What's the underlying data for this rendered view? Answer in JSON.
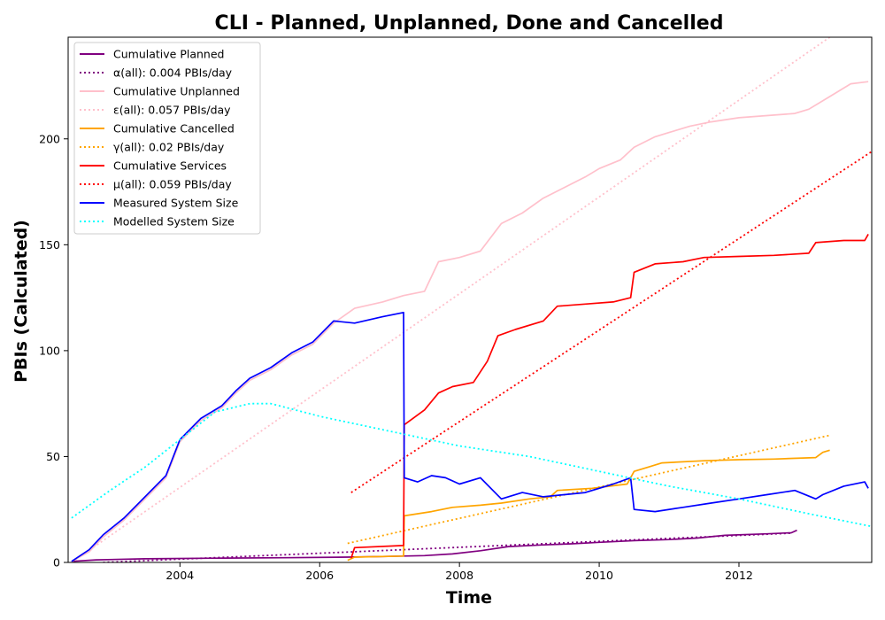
{
  "chart_data": {
    "type": "line",
    "title": "CLI - Planned, Unplanned, Done  and Cancelled",
    "xlabel": "Time",
    "ylabel": "PBIs (Calculated)",
    "xlim": [
      2002.4,
      2013.9
    ],
    "ylim": [
      0,
      248
    ],
    "x_ticks": [
      2004,
      2006,
      2008,
      2010,
      2012
    ],
    "x_tick_labels": [
      "2004",
      "2006",
      "2008",
      "2010",
      "2012"
    ],
    "y_ticks": [
      0,
      50,
      100,
      150,
      200
    ],
    "y_tick_labels": [
      "0",
      "50",
      "100",
      "150",
      "200"
    ],
    "grid": false,
    "legend_position": "top-left",
    "series": [
      {
        "name": "Cumulative Planned",
        "style": "solid",
        "color": "#800080",
        "x": [
          2002.45,
          2002.8,
          2003.5,
          2004.5,
          2005.5,
          2006.4,
          2006.9,
          2007.5,
          2007.9,
          2008.3,
          2008.7,
          2009.2,
          2009.6,
          2010.0,
          2010.5,
          2011.0,
          2011.4,
          2011.8,
          2012.4,
          2012.75,
          2012.83
        ],
        "values": [
          0.5,
          1.2,
          1.7,
          2.0,
          2.2,
          2.5,
          2.8,
          3.2,
          4.0,
          5.5,
          7.5,
          8.3,
          8.8,
          9.5,
          10.3,
          10.8,
          11.5,
          12.8,
          13.5,
          14.0,
          15.2
        ]
      },
      {
        "name": "α(all): 0.004 PBIs/day",
        "style": "dotted",
        "color": "#800080",
        "x": [
          2002.9,
          2012.75
        ],
        "values": [
          0.0,
          13.8
        ]
      },
      {
        "name": "Cumulative Unplanned",
        "style": "solid",
        "color": "#ffc0cb",
        "x": [
          2002.45,
          2002.7,
          2002.9,
          2003.2,
          2003.5,
          2003.8,
          2004.0,
          2004.3,
          2004.6,
          2004.8,
          2005.0,
          2005.3,
          2005.6,
          2005.9,
          2006.2,
          2006.5,
          2006.9,
          2007.2,
          2007.5,
          2007.7,
          2008.0,
          2008.3,
          2008.6,
          2008.9,
          2009.2,
          2009.5,
          2009.8,
          2010.0,
          2010.3,
          2010.5,
          2010.8,
          2011.0,
          2011.3,
          2011.6,
          2012.0,
          2012.4,
          2012.8,
          2013.0,
          2013.3,
          2013.6,
          2013.85
        ],
        "values": [
          0.5,
          5,
          12,
          20,
          30,
          40,
          57,
          67,
          73,
          80,
          86,
          91,
          98,
          103,
          113,
          120,
          123,
          126,
          128,
          142,
          144,
          147,
          160,
          165,
          172,
          177,
          182,
          186,
          190,
          196,
          201,
          203,
          206,
          208,
          210,
          211,
          212,
          214,
          220,
          226,
          227
        ]
      },
      {
        "name": "ε(all): 0.057 PBIs/day",
        "style": "dotted",
        "color": "#ffc0cb",
        "x": [
          2002.45,
          2013.3
        ],
        "values": [
          0,
          248
        ]
      },
      {
        "name": "Cumulative Cancelled",
        "style": "solid",
        "color": "#ffa500",
        "x": [
          2006.4,
          2006.5,
          2007.2,
          2007.21,
          2007.6,
          2007.9,
          2008.3,
          2008.6,
          2009.0,
          2009.3,
          2009.4,
          2009.9,
          2010.4,
          2010.5,
          2010.7,
          2010.9,
          2011.5,
          2012.0,
          2012.5,
          2013.1,
          2013.2,
          2013.3
        ],
        "values": [
          1.0,
          2.5,
          3.0,
          22.0,
          24.0,
          26.0,
          27.0,
          28.0,
          30.0,
          31.0,
          34.0,
          35.0,
          37.0,
          43.0,
          45.0,
          47.0,
          48.0,
          48.5,
          48.8,
          49.5,
          52.0,
          53.0
        ]
      },
      {
        "name": "γ(all): 0.02 PBIs/day",
        "style": "dotted",
        "color": "#ffa500",
        "x": [
          2006.4,
          2013.3
        ],
        "values": [
          9,
          60
        ]
      },
      {
        "name": "Cumulative Services",
        "style": "solid",
        "color": "#ff0000",
        "x": [
          2006.45,
          2006.5,
          2007.2,
          2007.21,
          2007.5,
          2007.7,
          2007.9,
          2008.2,
          2008.4,
          2008.55,
          2008.8,
          2009.2,
          2009.4,
          2009.8,
          2010.2,
          2010.45,
          2010.5,
          2010.8,
          2011.2,
          2011.5,
          2012.0,
          2012.5,
          2013.0,
          2013.1,
          2013.5,
          2013.8,
          2013.85
        ],
        "values": [
          2,
          7,
          8,
          65,
          72,
          80,
          83,
          85,
          95,
          107,
          110,
          114,
          121,
          122,
          123,
          125,
          137,
          141,
          142,
          144,
          144.5,
          145,
          146,
          151,
          152,
          152,
          155
        ]
      },
      {
        "name": "μ(all): 0.059 PBIs/day",
        "style": "dotted",
        "color": "#ff0000",
        "x": [
          2006.45,
          2013.9
        ],
        "values": [
          33,
          194
        ]
      },
      {
        "name": "Measured System Size",
        "style": "solid",
        "color": "#0000ff",
        "x": [
          2002.45,
          2002.7,
          2002.9,
          2003.2,
          2003.5,
          2003.8,
          2004.0,
          2004.3,
          2004.6,
          2004.8,
          2005.0,
          2005.3,
          2005.6,
          2005.9,
          2006.2,
          2006.5,
          2006.9,
          2007.2,
          2007.21,
          2007.4,
          2007.6,
          2007.8,
          2008.0,
          2008.3,
          2008.6,
          2008.9,
          2009.2,
          2009.5,
          2009.8,
          2010.2,
          2010.45,
          2010.5,
          2010.8,
          2011.2,
          2011.6,
          2012.0,
          2012.4,
          2012.8,
          2013.1,
          2013.2,
          2013.5,
          2013.8,
          2013.85
        ],
        "values": [
          0.5,
          6,
          13,
          21,
          31,
          41,
          58,
          68,
          74,
          81,
          87,
          92,
          99,
          104,
          114,
          113,
          116,
          118,
          40,
          38,
          41,
          40,
          37,
          40,
          30,
          33,
          31,
          32,
          33,
          37,
          40,
          25,
          24,
          26,
          28,
          30,
          32,
          34,
          30,
          32,
          36,
          38,
          35
        ]
      },
      {
        "name": "Modelled System Size",
        "style": "dotted",
        "color": "#00ffff",
        "x": [
          2002.45,
          2003.0,
          2003.5,
          2004.0,
          2004.5,
          2005.0,
          2005.3,
          2006.0,
          2007.0,
          2008.0,
          2009.0,
          2010.0,
          2011.0,
          2012.0,
          2013.0,
          2013.9
        ],
        "values": [
          21,
          34,
          45,
          58,
          71,
          75,
          75,
          69,
          62,
          55,
          50,
          43,
          36,
          30,
          23,
          17
        ]
      }
    ]
  }
}
